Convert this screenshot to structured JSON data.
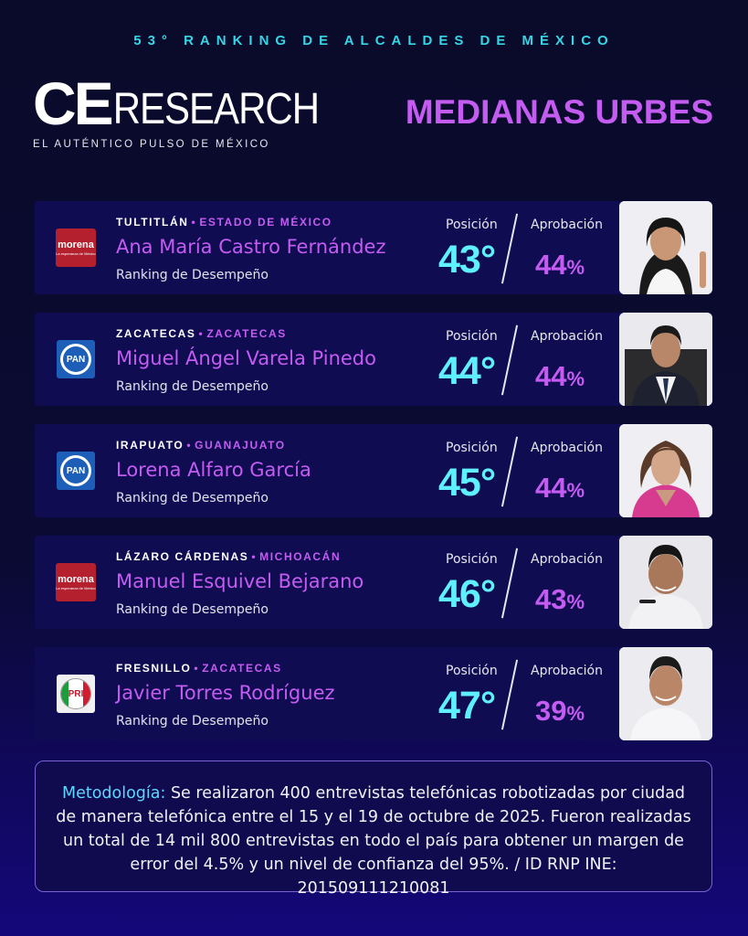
{
  "header": {
    "edition": "53° RANKING DE ALCALDES DE MÉXICO",
    "logo_ce": "CE",
    "logo_research": "RESEARCH",
    "logo_tagline": "EL AUTÉNTICO PULSO DE MÉXICO",
    "category": "MEDIANAS URBES"
  },
  "labels": {
    "position": "Posición",
    "approval": "Aprobación",
    "ranking": "Ranking de Desempeño"
  },
  "mayors": [
    {
      "city": "TULTITLÁN",
      "state": "ESTADO DE MÉXICO",
      "name": "Ana María Castro Fernández",
      "party": "morena",
      "position": "43°",
      "approval": "44",
      "approval_unit": "%"
    },
    {
      "city": "ZACATECAS",
      "state": "ZACATECAS",
      "name": "Miguel Ángel Varela Pinedo",
      "party": "PAN",
      "position": "44°",
      "approval": "44",
      "approval_unit": "%"
    },
    {
      "city": "IRAPUATO",
      "state": "GUANAJUATO",
      "name": "Lorena Alfaro García",
      "party": "PAN",
      "position": "45°",
      "approval": "44",
      "approval_unit": "%"
    },
    {
      "city": "LÁZARO CÁRDENAS",
      "state": "MICHOACÁN",
      "name": "Manuel Esquivel Bejarano",
      "party": "morena",
      "position": "46°",
      "approval": "43",
      "approval_unit": "%"
    },
    {
      "city": "FRESNILLO",
      "state": "ZACATECAS",
      "name": "Javier Torres Rodríguez",
      "party": "PRI",
      "position": "47°",
      "approval": "39",
      "approval_unit": "%"
    }
  ],
  "party_logos": {
    "morena": {
      "text": "morena",
      "subtext": "La esperanza de México",
      "color": "#b5202e"
    },
    "PAN": {
      "text": "PAN",
      "color": "#1d5fb8"
    },
    "PRI": {
      "text": "PRI",
      "colors": [
        "#1e9b3a",
        "#ffffff",
        "#d01d2f"
      ]
    }
  },
  "methodology": {
    "label": "Metodología:",
    "text": " Se realizaron 400 entrevistas telefónicas robotizadas por ciudad de manera telefónica entre el 15 y el 19 de octubre de 2025. Fueron realizadas un total de 14 mil 800 entrevistas  en todo el país para obtener un margen de error del 4.5% y un nivel de confianza del 95%. / ID RNP INE:  201509111210081"
  },
  "colors": {
    "accent_purple": "#c55cf2",
    "accent_cyan": "#5ff0ff",
    "card_bg": "#0f0c52",
    "page_bg": "#0a0a2a"
  }
}
